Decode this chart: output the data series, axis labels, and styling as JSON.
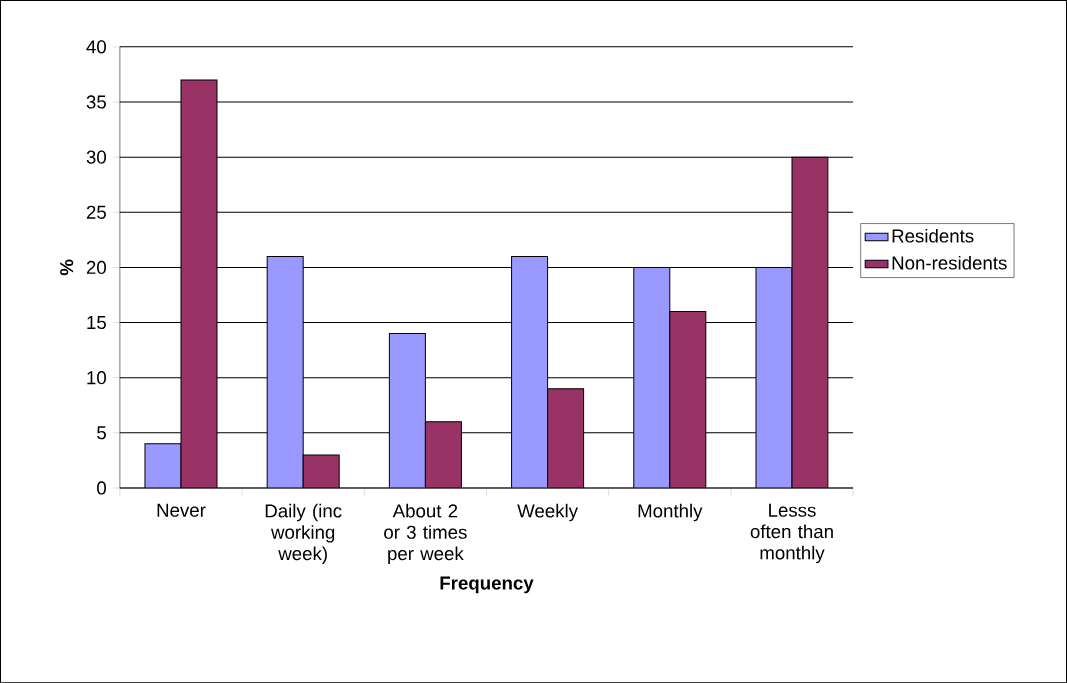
{
  "chart_data": {
    "type": "bar",
    "xlabel": "Frequency",
    "ylabel": "%",
    "categories": [
      "Never",
      "Daily (inc working week)",
      "About 2 or 3 times per week",
      "Weekly",
      "Monthly",
      "Lesss often than monthly"
    ],
    "series": [
      {
        "name": "Residents",
        "color": "#9999ff",
        "values": [
          4,
          21,
          14,
          21,
          20,
          20
        ]
      },
      {
        "name": "Non-residents",
        "color": "#993366",
        "values": [
          37,
          3,
          6,
          9,
          16,
          30
        ]
      }
    ],
    "ylim": [
      0,
      40
    ],
    "yticks": [
      0,
      5,
      10,
      15,
      20,
      25,
      30,
      35,
      40
    ],
    "grid": "y",
    "legend": "right"
  }
}
